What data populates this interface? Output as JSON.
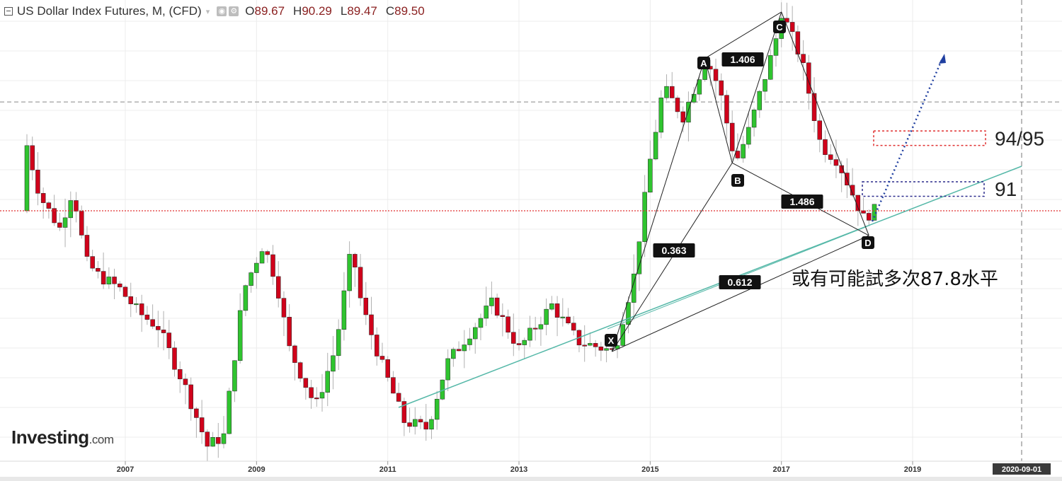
{
  "header": {
    "title": "US Dollar Index Futures, M, (CFD)",
    "caret": "▾",
    "o_label": "O",
    "o_value": "89.67",
    "h_label": "H",
    "h_value": "90.29",
    "l_label": "L",
    "l_value": "89.47",
    "c_label": "C",
    "c_value": "89.50"
  },
  "logo": {
    "name": "Investing",
    "domain": ".com"
  },
  "annotations": {
    "level_94_95": "94/95",
    "level_91": "91",
    "note": "或有可能試多次87.8水平",
    "ratio_ab_c": "1.406",
    "ratio_xa_b": "0.363",
    "ratio_bc_d": "1.486",
    "ratio_xa_d": "0.612",
    "points": [
      "X",
      "A",
      "B",
      "C",
      "D"
    ]
  },
  "chart_data": {
    "type": "candlestick",
    "x_ticks": [
      "2007",
      "2009",
      "2011",
      "2013",
      "2015",
      "2017",
      "2019"
    ],
    "crosshair_date": "2020-09-01",
    "colors": {
      "up": "#2fc42f",
      "down": "#d0021b",
      "trendline": "#55b8a8",
      "pattern": "#222222",
      "current_price_line": "#e03030",
      "target_94_95": "#e03030",
      "target_91": "#2b2b8c",
      "projection": "#1f3fa0"
    },
    "pattern_points": {
      "X": {
        "date": "2014-06",
        "value": 79.8
      },
      "A": {
        "date": "2015-11",
        "value": 100.0
      },
      "B": {
        "date": "2016-04",
        "value": 92.8
      },
      "C": {
        "date": "2017-01",
        "value": 103.2
      },
      "D": {
        "date": "2018-05",
        "value": 87.8
      }
    },
    "targets": [
      {
        "label": "94/95",
        "low": 94,
        "high": 95
      },
      {
        "label": "91",
        "low": 90.5,
        "high": 91.5
      }
    ],
    "horizontal_levels": {
      "current": 89.5,
      "dashed_grey": 97
    },
    "ylim": [
      70,
      106
    ]
  }
}
